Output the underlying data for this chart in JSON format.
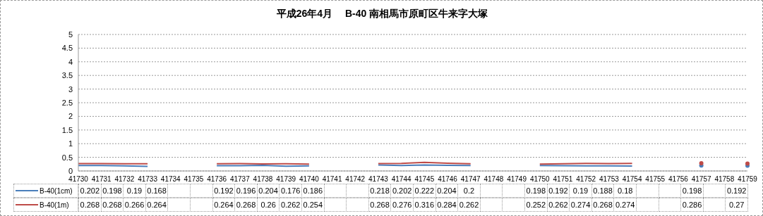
{
  "chart_data": {
    "type": "line",
    "title": "平成26年4月　 B-40 南相馬市原町区牛来字大塚",
    "categories": [
      "41730",
      "41731",
      "41732",
      "41733",
      "41734",
      "41735",
      "41736",
      "41737",
      "41738",
      "41739",
      "41740",
      "41741",
      "41742",
      "41743",
      "41744",
      "41745",
      "41746",
      "41747",
      "41748",
      "41749",
      "41750",
      "41751",
      "41752",
      "41753",
      "41754",
      "41755",
      "41756",
      "41757",
      "41758",
      "41759"
    ],
    "series": [
      {
        "name": "B-40(1cm)",
        "color": "#4a7ebb",
        "values": [
          0.202,
          0.198,
          0.19,
          0.168,
          null,
          null,
          0.192,
          0.196,
          0.204,
          0.176,
          0.186,
          null,
          null,
          0.218,
          0.202,
          0.222,
          0.204,
          0.2,
          null,
          null,
          0.198,
          0.192,
          0.19,
          0.188,
          0.18,
          null,
          null,
          0.198,
          null,
          0.192
        ]
      },
      {
        "name": "B-40(1m)",
        "color": "#be4b48",
        "values": [
          0.268,
          0.268,
          0.266,
          0.264,
          null,
          null,
          0.264,
          0.268,
          0.26,
          0.262,
          0.254,
          null,
          null,
          0.268,
          0.276,
          0.316,
          0.284,
          0.262,
          null,
          null,
          0.252,
          0.262,
          0.274,
          0.268,
          0.274,
          null,
          null,
          0.286,
          null,
          0.27
        ]
      }
    ],
    "ylim": [
      0,
      5
    ],
    "yticks": [
      0,
      0.5,
      1,
      1.5,
      2,
      2.5,
      3,
      3.5,
      4,
      4.5,
      5
    ],
    "grid": "y",
    "legend": "bottom",
    "data_labels": true,
    "marker": "none",
    "line_style": "solid"
  }
}
